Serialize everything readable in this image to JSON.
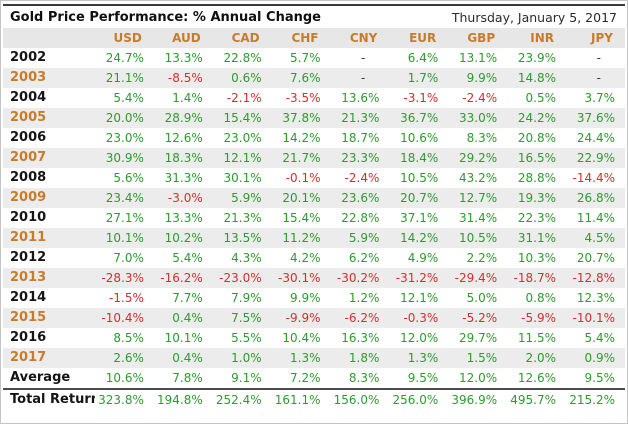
{
  "chart_data": {
    "type": "table",
    "title": "Gold Price Performance: % Annual Change",
    "date": "Thursday, January 5, 2017",
    "columns": [
      "USD",
      "AUD",
      "CAD",
      "CHF",
      "CNY",
      "EUR",
      "GBP",
      "INR",
      "JPY"
    ],
    "total_label": "Total Return",
    "rows": [
      {
        "label": "2002",
        "values": [
          "24.7%",
          "13.3%",
          "22.8%",
          "5.7%",
          "-",
          "6.4%",
          "13.1%",
          "23.9%",
          "-"
        ]
      },
      {
        "label": "2003",
        "values": [
          "21.1%",
          "-8.5%",
          "0.6%",
          "7.6%",
          "-",
          "1.7%",
          "9.9%",
          "14.8%",
          "-"
        ]
      },
      {
        "label": "2004",
        "values": [
          "5.4%",
          "1.4%",
          "-2.1%",
          "-3.5%",
          "13.6%",
          "-3.1%",
          "-2.4%",
          "0.5%",
          "3.7%"
        ]
      },
      {
        "label": "2005",
        "values": [
          "20.0%",
          "28.9%",
          "15.4%",
          "37.8%",
          "21.3%",
          "36.7%",
          "33.0%",
          "24.2%",
          "37.6%"
        ]
      },
      {
        "label": "2006",
        "values": [
          "23.0%",
          "12.6%",
          "23.0%",
          "14.2%",
          "18.7%",
          "10.6%",
          "8.3%",
          "20.8%",
          "24.4%"
        ]
      },
      {
        "label": "2007",
        "values": [
          "30.9%",
          "18.3%",
          "12.1%",
          "21.7%",
          "23.3%",
          "18.4%",
          "29.2%",
          "16.5%",
          "22.9%"
        ]
      },
      {
        "label": "2008",
        "values": [
          "5.6%",
          "31.3%",
          "30.1%",
          "-0.1%",
          "-2.4%",
          "10.5%",
          "43.2%",
          "28.8%",
          "-14.4%"
        ]
      },
      {
        "label": "2009",
        "values": [
          "23.4%",
          "-3.0%",
          "5.9%",
          "20.1%",
          "23.6%",
          "20.7%",
          "12.7%",
          "19.3%",
          "26.8%"
        ]
      },
      {
        "label": "2010",
        "values": [
          "27.1%",
          "13.3%",
          "21.3%",
          "15.4%",
          "22.8%",
          "37.1%",
          "31.4%",
          "22.3%",
          "11.4%"
        ]
      },
      {
        "label": "2011",
        "values": [
          "10.1%",
          "10.2%",
          "13.5%",
          "11.2%",
          "5.9%",
          "14.2%",
          "10.5%",
          "31.1%",
          "4.5%"
        ]
      },
      {
        "label": "2012",
        "values": [
          "7.0%",
          "5.4%",
          "4.3%",
          "4.2%",
          "6.2%",
          "4.9%",
          "2.2%",
          "10.3%",
          "20.7%"
        ]
      },
      {
        "label": "2013",
        "values": [
          "-28.3%",
          "-16.2%",
          "-23.0%",
          "-30.1%",
          "-30.2%",
          "-31.2%",
          "-29.4%",
          "-18.7%",
          "-12.8%"
        ]
      },
      {
        "label": "2014",
        "values": [
          "-1.5%",
          "7.7%",
          "7.9%",
          "9.9%",
          "1.2%",
          "12.1%",
          "5.0%",
          "0.8%",
          "12.3%"
        ]
      },
      {
        "label": "2015",
        "values": [
          "-10.4%",
          "0.4%",
          "7.5%",
          "-9.9%",
          "-6.2%",
          "-0.3%",
          "-5.2%",
          "-5.9%",
          "-10.1%"
        ]
      },
      {
        "label": "2016",
        "values": [
          "8.5%",
          "10.1%",
          "5.5%",
          "10.4%",
          "16.3%",
          "12.0%",
          "29.7%",
          "11.5%",
          "5.4%"
        ]
      },
      {
        "label": "2017",
        "values": [
          "2.6%",
          "0.4%",
          "1.0%",
          "1.3%",
          "1.8%",
          "1.3%",
          "1.5%",
          "2.0%",
          "0.9%"
        ]
      },
      {
        "label": "Average",
        "values": [
          "10.6%",
          "7.8%",
          "9.1%",
          "7.2%",
          "8.3%",
          "9.5%",
          "12.0%",
          "12.6%",
          "9.5%"
        ]
      },
      {
        "label": "Total Return",
        "values": [
          "323.8%",
          "194.8%",
          "252.4%",
          "161.1%",
          "156.0%",
          "256.0%",
          "396.9%",
          "495.7%",
          "215.2%"
        ]
      }
    ]
  },
  "colors": {
    "positive": "#2f9a2f",
    "negative": "#d22f2f",
    "accent_orange": "#c87c2a",
    "header_bg": "#e7e7e7",
    "shaded_bg": "#ececec",
    "top_border": "#3b3b3b"
  }
}
